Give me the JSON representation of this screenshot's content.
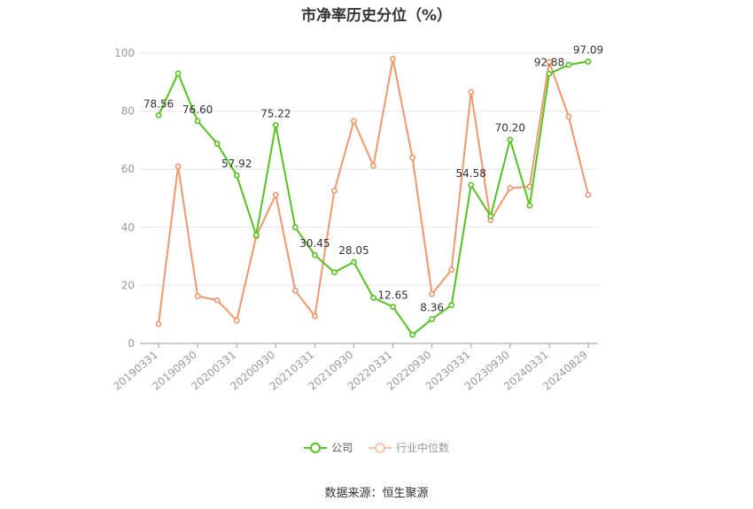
{
  "chart_data": {
    "type": "line",
    "title": "市净率历史分位（%）",
    "source": "数据来源：恒生聚源",
    "ylim": [
      0,
      100
    ],
    "yticks": [
      "0",
      "20",
      "40",
      "60",
      "80",
      "100"
    ],
    "x": [
      "20190331",
      "20190630",
      "20190930",
      "20191231",
      "20200331",
      "20200630",
      "20200930",
      "20201231",
      "20210331",
      "20210630",
      "20210930",
      "20211231",
      "20220331",
      "20220630",
      "20220930",
      "20221231",
      "20230331",
      "20230630",
      "20230930",
      "20231231",
      "20240331",
      "20240630",
      "20240829"
    ],
    "xtick_labels": [
      "20190331",
      "20190930",
      "20200331",
      "20200930",
      "20210331",
      "20210930",
      "20220331",
      "20220930",
      "20230331",
      "20230930",
      "20240331",
      "20240829"
    ],
    "grid": true,
    "legend_position": "bottom",
    "series": [
      {
        "name": "公司",
        "color": "#52c41a",
        "values": [
          78.56,
          93.0,
          76.6,
          68.8,
          57.92,
          37.3,
          75.22,
          40.0,
          30.45,
          24.5,
          28.05,
          15.7,
          12.65,
          3.0,
          8.36,
          13.2,
          54.58,
          43.8,
          70.2,
          47.5,
          92.88,
          96.0,
          97.09
        ],
        "labels": [
          "78.56",
          "",
          "76.60",
          "",
          "57.92",
          "",
          "75.22",
          "",
          "30.45",
          "",
          "28.05",
          "",
          "12.65",
          "",
          "8.36",
          "",
          "54.58",
          "",
          "70.20",
          "",
          "92.88",
          "",
          "97.09"
        ]
      },
      {
        "name": "行业中位数",
        "color": "#f4956a",
        "values": [
          6.7,
          61.0,
          16.3,
          14.9,
          7.9,
          36.9,
          51.2,
          18.2,
          9.4,
          52.6,
          76.6,
          61.2,
          98.0,
          64.0,
          17.0,
          25.4,
          86.6,
          42.5,
          53.5,
          54.0,
          97.0,
          78.1,
          51.2
        ]
      }
    ]
  }
}
